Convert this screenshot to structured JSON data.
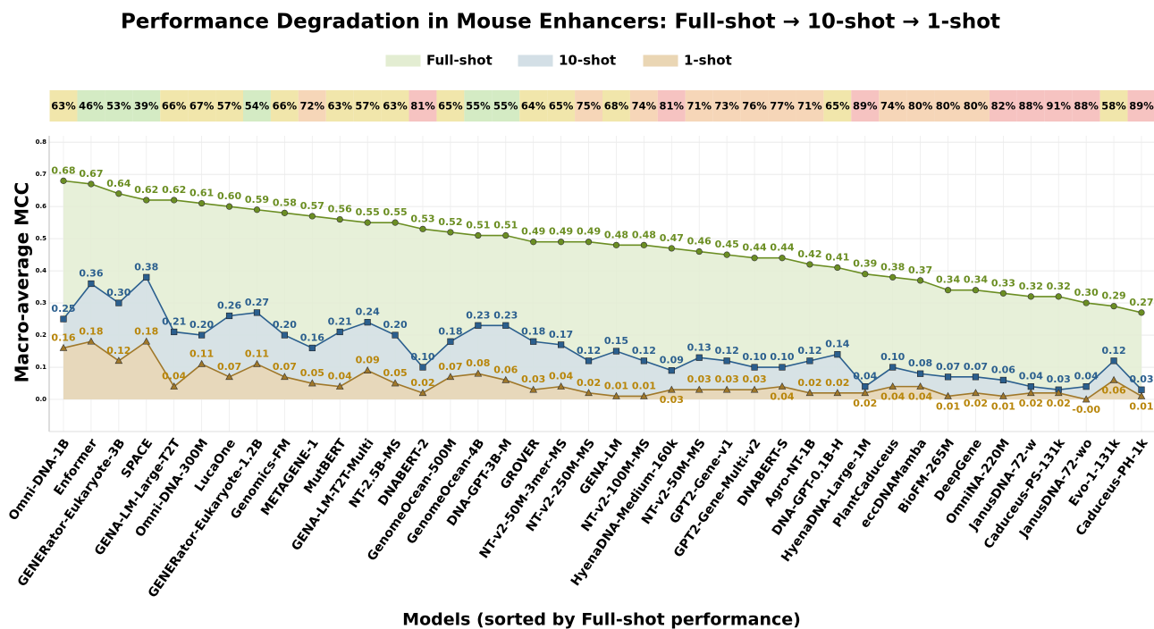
{
  "chart_data": {
    "type": "line",
    "title": "Performance Degradation in Mouse Enhancers: Full-shot → 10-shot → 1-shot",
    "xlabel": "Models (sorted by Full-shot performance)",
    "ylabel": "Macro-average MCC",
    "categories": [
      "Omni-DNA-1B",
      "Enformer",
      "GENERator-Eukaryote-3B",
      "SPACE",
      "GENA-LM-Large-T2T",
      "Omni-DNA-300M",
      "LucaOne",
      "GENERator-Eukaryote-1.2B",
      "Genomics-FM",
      "METAGENE-1",
      "MutBERT",
      "GENA-LM-T2T-Multi",
      "NT-2.5B-MS",
      "DNABERT-2",
      "GenomeOcean-500M",
      "GenomeOcean-4B",
      "DNA-GPT-3B-M",
      "GROVER",
      "NT-v2-50M-3mer-MS",
      "NT-v2-250M-MS",
      "GENA-LM",
      "NT-v2-100M-MS",
      "HyenaDNA-Medium-160k",
      "NT-v2-50M-MS",
      "GPT2-Gene-v1",
      "GPT2-Gene-Multi-v2",
      "DNABERT-S",
      "Agro-NT-1B",
      "DNA-GPT-0.1B-H",
      "HyenaDNA-Large-1M",
      "PlantCaduceus",
      "eccDNAMamba",
      "BioFM-265M",
      "DeepGene",
      "OmniNA-220M",
      "JanusDNA-72-w",
      "Caduceus-PS-131k",
      "JanusDNA-72-wo",
      "Evo-1-131k",
      "Caduceus-PH-1k"
    ],
    "series": [
      {
        "name": "Full-shot",
        "color": "#6b8e23",
        "fill": "#e3edd2",
        "marker": "circle",
        "values": [
          0.68,
          0.67,
          0.64,
          0.62,
          0.62,
          0.61,
          0.6,
          0.59,
          0.58,
          0.57,
          0.56,
          0.55,
          0.55,
          0.53,
          0.52,
          0.51,
          0.51,
          0.49,
          0.49,
          0.49,
          0.48,
          0.48,
          0.47,
          0.46,
          0.45,
          0.44,
          0.44,
          0.42,
          0.41,
          0.39,
          0.38,
          0.37,
          0.34,
          0.34,
          0.33,
          0.32,
          0.32,
          0.3,
          0.29,
          0.27
        ],
        "value_labels": [
          "0.68",
          "0.67",
          "0.64",
          "0.62",
          "0.62",
          "0.61",
          "0.60",
          "0.59",
          "0.58",
          "0.57",
          "0.56",
          "0.55",
          "0.55",
          "0.53",
          "0.52",
          "0.51",
          "0.51",
          "0.49",
          "0.49",
          "0.49",
          "0.48",
          "0.48",
          "0.47",
          "0.46",
          "0.45",
          "0.44",
          "0.44",
          "0.42",
          "0.41",
          "0.39",
          "0.38",
          "0.37",
          "0.34",
          "0.34",
          "0.33",
          "0.32",
          "0.32",
          "0.30",
          "0.29",
          "0.27"
        ]
      },
      {
        "name": "10-shot",
        "color": "#2b5f8e",
        "fill": "#d3dfe6",
        "marker": "square",
        "values": [
          0.25,
          0.36,
          0.3,
          0.38,
          0.21,
          0.2,
          0.26,
          0.27,
          0.2,
          0.16,
          0.21,
          0.24,
          0.2,
          0.1,
          0.18,
          0.23,
          0.23,
          0.18,
          0.17,
          0.12,
          0.15,
          0.12,
          0.09,
          0.13,
          0.12,
          0.1,
          0.1,
          0.12,
          0.14,
          0.04,
          0.1,
          0.08,
          0.07,
          0.07,
          0.06,
          0.04,
          0.03,
          0.04,
          0.12,
          0.03
        ],
        "value_labels": [
          "0.25",
          "0.36",
          "0.30",
          "0.38",
          "0.21",
          "0.20",
          "0.26",
          "0.27",
          "0.20",
          "0.16",
          "0.21",
          "0.24",
          "0.20",
          "0.10",
          "0.18",
          "0.23",
          "0.23",
          "0.18",
          "0.17",
          "0.12",
          "0.15",
          "0.12",
          "0.09",
          "0.13",
          "0.12",
          "0.10",
          "0.10",
          "0.12",
          "0.14",
          "0.04",
          "0.10",
          "0.08",
          "0.07",
          "0.07",
          "0.06",
          "0.04",
          "0.03",
          "0.04",
          "0.12",
          "0.03"
        ]
      },
      {
        "name": "1-shot",
        "color": "#a0782a",
        "fill": "#ead6b4",
        "marker": "triangle",
        "values": [
          0.16,
          0.18,
          0.12,
          0.18,
          0.04,
          0.11,
          0.07,
          0.11,
          0.07,
          0.05,
          0.04,
          0.09,
          0.05,
          0.02,
          0.07,
          0.08,
          0.06,
          0.03,
          0.04,
          0.02,
          0.01,
          0.01,
          0.03,
          0.03,
          0.03,
          0.03,
          0.04,
          0.02,
          0.02,
          0.02,
          0.04,
          0.04,
          0.01,
          0.02,
          0.01,
          0.02,
          0.02,
          -0.0,
          0.06,
          0.01
        ],
        "value_labels": [
          "0.16",
          "0.18",
          "0.12",
          "0.18",
          "0.04",
          "0.11",
          "0.07",
          "0.11",
          "0.07",
          "0.05",
          "0.04",
          "0.09",
          "0.05",
          "0.02",
          "0.07",
          "0.08",
          "0.06",
          "0.03",
          "0.04",
          "0.02",
          "0.01",
          "0.01",
          "0.03",
          "0.03",
          "0.03",
          "0.03",
          "0.04",
          "0.02",
          "0.02",
          "0.02",
          "0.04",
          "0.04",
          "0.01",
          "0.02",
          "0.01",
          "0.02",
          "0.02",
          "-0.00",
          "0.06",
          "0.01"
        ]
      }
    ],
    "degradation": {
      "values": [
        63,
        46,
        53,
        39,
        66,
        67,
        57,
        54,
        66,
        72,
        63,
        57,
        63,
        81,
        65,
        55,
        55,
        64,
        65,
        75,
        68,
        74,
        81,
        71,
        73,
        76,
        77,
        71,
        65,
        89,
        74,
        80,
        80,
        80,
        82,
        88,
        91,
        88,
        58,
        89
      ],
      "value_labels": [
        "63%",
        "46%",
        "53%",
        "39%",
        "66%",
        "67%",
        "57%",
        "54%",
        "66%",
        "72%",
        "63%",
        "57%",
        "63%",
        "81%",
        "65%",
        "55%",
        "55%",
        "64%",
        "65%",
        "75%",
        "68%",
        "74%",
        "81%",
        "71%",
        "73%",
        "76%",
        "77%",
        "71%",
        "65%",
        "89%",
        "74%",
        "80%",
        "80%",
        "80%",
        "82%",
        "88%",
        "91%",
        "88%",
        "58%",
        "89%"
      ]
    },
    "ylim": [
      -0.1,
      0.82
    ],
    "yticks": [
      {
        "value": 0,
        "label": "0.0"
      },
      {
        "value": 0.1,
        "label": "0.1"
      },
      {
        "value": 0.2,
        "label": "0.2"
      },
      {
        "value": 0.3,
        "label": "0.3"
      },
      {
        "value": 0.4,
        "label": "0.4"
      },
      {
        "value": 0.5,
        "label": "0.5"
      },
      {
        "value": 0.6,
        "label": "0.6"
      },
      {
        "value": 0.7,
        "label": "0.7"
      },
      {
        "value": 0.8,
        "label": "0.8"
      }
    ],
    "grid": true
  }
}
